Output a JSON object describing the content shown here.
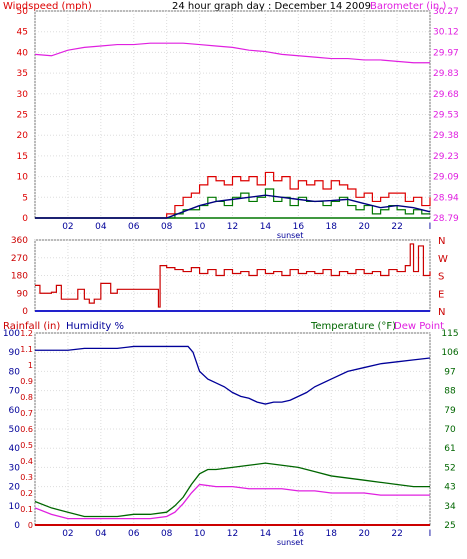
{
  "header": {
    "left_label": "Windspeed (mph)",
    "title": "24 hour graph day : December 14 2009",
    "right_label": "Barometer (in.)"
  },
  "colors": {
    "wind": "#dd0000",
    "gust": "#dd0000",
    "avg_wind": "#000080",
    "barometer": "#e020e0",
    "direction": "#cc0000",
    "humidity": "#000099",
    "temperature": "#006600",
    "dew_point": "#e020e0",
    "rain": "#cc0000",
    "zero_line": "#2222cc"
  },
  "x_ticks": [
    "02",
    "04",
    "06",
    "08",
    "10",
    "12",
    "14",
    "16",
    "18",
    "20",
    "22",
    "I"
  ],
  "sunset_label": "sunset",
  "dir_panel": {
    "left_ticks": [
      "360",
      "270",
      "180",
      "90",
      "0"
    ],
    "right_ticks": [
      "N",
      "W",
      "S",
      "E",
      "N"
    ]
  },
  "bottom_header": {
    "rain_label": "Rainfall (in)",
    "humidity_label": "Humidity %",
    "temp_label": "Temperature (°F)",
    "dew_label": "Dew Point"
  },
  "chart_data": [
    {
      "type": "line",
      "title": "24 hour graph day : December 14 2009",
      "x_range_hours": [
        0,
        24
      ],
      "y_left": {
        "label": "Windspeed (mph)",
        "ticks": [
          "50",
          "45",
          "40",
          "35",
          "30",
          "25",
          "20",
          "15",
          "10",
          "5",
          "0"
        ],
        "range": [
          0,
          50
        ]
      },
      "y_right": {
        "label": "Barometer (in.)",
        "ticks": [
          "30.27",
          "30.12",
          "29.97",
          "29.83",
          "29.68",
          "29.53",
          "29.38",
          "29.23",
          "29.09",
          "28.94",
          "28.79"
        ],
        "range": [
          28.79,
          30.27
        ]
      },
      "series": [
        {
          "name": "Barometer (in.)",
          "axis": "right",
          "x": [
            0,
            1,
            2,
            3,
            4,
            5,
            6,
            7,
            8,
            9,
            10,
            11,
            12,
            13,
            14,
            15,
            16,
            17,
            18,
            19,
            20,
            21,
            22,
            23,
            24
          ],
          "values": [
            29.96,
            29.95,
            29.99,
            30.01,
            30.02,
            30.03,
            30.03,
            30.04,
            30.04,
            30.04,
            30.03,
            30.02,
            30.01,
            29.99,
            29.98,
            29.96,
            29.95,
            29.94,
            29.93,
            29.93,
            29.92,
            29.92,
            29.91,
            29.9,
            29.9
          ]
        },
        {
          "name": "Gust",
          "axis": "left",
          "x": [
            0,
            1,
            2,
            3,
            4,
            5,
            6,
            7,
            8,
            8.5,
            9,
            9.5,
            10,
            10.5,
            11,
            11.5,
            12,
            12.5,
            13,
            13.5,
            14,
            14.5,
            15,
            15.5,
            16,
            16.5,
            17,
            17.5,
            18,
            18.5,
            19,
            19.5,
            20,
            20.5,
            21,
            21.5,
            22,
            22.5,
            23,
            23.5,
            24
          ],
          "values": [
            0,
            0,
            0,
            0,
            0,
            0,
            0,
            0,
            1,
            3,
            5,
            6,
            8,
            10,
            9,
            8,
            10,
            9,
            10,
            8,
            11,
            9,
            10,
            7,
            9,
            8,
            9,
            7,
            9,
            8,
            7,
            5,
            6,
            4,
            5,
            6,
            6,
            4,
            5,
            3,
            5
          ]
        },
        {
          "name": "Wind",
          "axis": "left",
          "x": [
            0,
            1,
            2,
            3,
            4,
            5,
            6,
            7,
            8,
            8.5,
            9,
            9.5,
            10,
            10.5,
            11,
            11.5,
            12,
            12.5,
            13,
            13.5,
            14,
            14.5,
            15,
            15.5,
            16,
            16.5,
            17,
            17.5,
            18,
            18.5,
            19,
            19.5,
            20,
            20.5,
            21,
            21.5,
            22,
            22.5,
            23,
            23.5,
            24
          ],
          "values": [
            0,
            0,
            0,
            0,
            0,
            0,
            0,
            0,
            0,
            1,
            2,
            2,
            3,
            5,
            4,
            3,
            5,
            6,
            4,
            5,
            7,
            4,
            5,
            3,
            5,
            4,
            4,
            3,
            4,
            5,
            3,
            2,
            3,
            1,
            2,
            3,
            2,
            1,
            2,
            1,
            1
          ]
        },
        {
          "name": "Average wind",
          "axis": "left",
          "x": [
            0,
            8,
            9,
            10,
            11,
            12,
            13,
            14,
            15,
            16,
            17,
            18,
            19,
            20,
            21,
            22,
            23,
            24
          ],
          "values": [
            0,
            0,
            1.5,
            3,
            4,
            4.5,
            5,
            5.5,
            5,
            4.5,
            4,
            4.2,
            4.5,
            3.5,
            2.5,
            3,
            2.5,
            1.5
          ]
        }
      ]
    },
    {
      "type": "line",
      "x_range_hours": [
        0,
        24
      ],
      "y_left": {
        "ticks": [
          "360",
          "270",
          "180",
          "90",
          "0"
        ],
        "range": [
          0,
          360
        ]
      },
      "y_right": {
        "ticks": [
          "N",
          "W",
          "S",
          "E",
          "N"
        ]
      },
      "series": [
        {
          "name": "Wind direction",
          "x": [
            0,
            0.3,
            0.6,
            1.0,
            1.3,
            1.6,
            2.0,
            2.3,
            2.6,
            3.0,
            3.3,
            3.6,
            4.0,
            4.3,
            4.6,
            5.0,
            5.5,
            6.0,
            6.5,
            7.0,
            7.3,
            7.5,
            7.6,
            8.0,
            8.5,
            9.0,
            9.5,
            10,
            10.5,
            11,
            11.5,
            12,
            12.5,
            13,
            13.5,
            14,
            14.5,
            15,
            15.5,
            16,
            16.5,
            17,
            17.5,
            18,
            18.5,
            19,
            19.5,
            20,
            20.5,
            21,
            21.5,
            22,
            22.5,
            22.8,
            23.0,
            23.3,
            23.6,
            24
          ],
          "values": [
            130,
            90,
            90,
            95,
            130,
            60,
            60,
            60,
            110,
            60,
            40,
            60,
            140,
            140,
            90,
            110,
            110,
            110,
            110,
            110,
            110,
            20,
            230,
            220,
            210,
            200,
            220,
            190,
            210,
            180,
            210,
            190,
            200,
            180,
            210,
            190,
            200,
            180,
            210,
            190,
            200,
            190,
            210,
            180,
            200,
            190,
            210,
            190,
            200,
            180,
            210,
            200,
            230,
            340,
            200,
            330,
            180,
            200
          ]
        }
      ]
    },
    {
      "type": "line",
      "x_range_hours": [
        0,
        24
      ],
      "y_left_outer": {
        "label": "Rainfall (in)",
        "ticks": [
          "1.2",
          "1.1",
          "1",
          "0.9",
          "0.8",
          "0.7",
          "0.6",
          "0.5",
          "0.4",
          "0.3",
          "0.2",
          "0.1",
          "0"
        ],
        "range": [
          0,
          1.2
        ]
      },
      "y_left_inner": {
        "label": "Humidity %",
        "ticks": [
          "100",
          "90",
          "80",
          "70",
          "60",
          "50",
          "40",
          "30",
          "20",
          "10",
          "0"
        ],
        "range": [
          0,
          100
        ]
      },
      "y_right": {
        "label": "Temperature (°F)",
        "ticks": [
          "115",
          "106",
          "97",
          "88",
          "79",
          "70",
          "61",
          "52",
          "43",
          "34",
          "25"
        ],
        "range": [
          25,
          115
        ]
      },
      "series": [
        {
          "name": "Humidity %",
          "axis": "humidity",
          "x": [
            0,
            1,
            2,
            3,
            4,
            5,
            6,
            7,
            8,
            9,
            9.3,
            9.6,
            10,
            10.5,
            11,
            11.5,
            12,
            12.5,
            13,
            13.5,
            14,
            14.5,
            15,
            15.5,
            16,
            16.5,
            17,
            18,
            19,
            20,
            21,
            22,
            23,
            24
          ],
          "values": [
            91,
            91,
            91,
            92,
            92,
            92,
            93,
            93,
            93,
            93,
            93,
            90,
            80,
            76,
            74,
            72,
            69,
            67,
            66,
            64,
            63,
            64,
            64,
            65,
            67,
            69,
            72,
            76,
            80,
            82,
            84,
            85,
            86,
            87
          ]
        },
        {
          "name": "Temperature (°F)",
          "axis": "temperature",
          "x": [
            0,
            1,
            2,
            3,
            4,
            5,
            6,
            7,
            8,
            8.5,
            9,
            9.5,
            10,
            10.5,
            11,
            12,
            13,
            14,
            15,
            16,
            17,
            18,
            19,
            20,
            21,
            22,
            23,
            24
          ],
          "values": [
            36,
            33,
            31,
            29,
            29,
            29,
            30,
            30,
            31,
            34,
            38,
            44,
            49,
            51,
            51,
            52,
            53,
            54,
            53,
            52,
            50,
            48,
            47,
            46,
            45,
            44,
            43,
            43
          ]
        },
        {
          "name": "Dew Point",
          "axis": "temperature",
          "x": [
            0,
            1,
            2,
            3,
            4,
            5,
            6,
            7,
            8,
            8.5,
            9,
            9.5,
            10,
            11,
            12,
            13,
            14,
            15,
            16,
            17,
            18,
            19,
            20,
            21,
            22,
            23,
            24
          ],
          "values": [
            33,
            30,
            28,
            28,
            28,
            28,
            28,
            28,
            29,
            31,
            35,
            40,
            44,
            43,
            43,
            42,
            42,
            42,
            41,
            41,
            40,
            40,
            40,
            39,
            39,
            39,
            39
          ]
        },
        {
          "name": "Rainfall (in)",
          "axis": "rain",
          "x": [
            0,
            24
          ],
          "values": [
            0,
            0
          ]
        }
      ]
    }
  ]
}
